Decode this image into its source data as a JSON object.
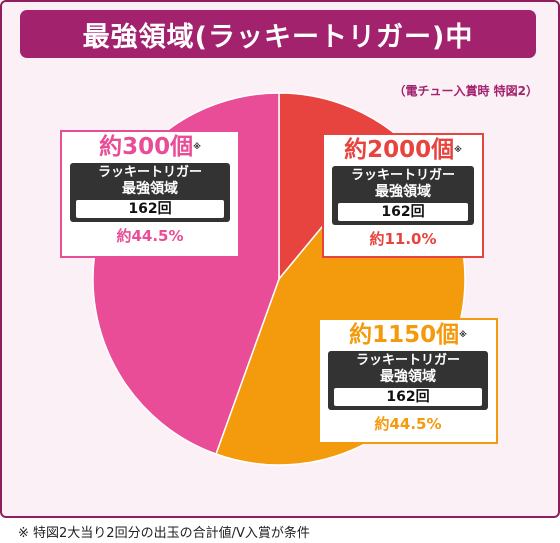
{
  "title": "最強領域(ラッキートリガー)中",
  "subtitle": "（電チュー入賞時 特図2）",
  "footnote": "※ 特図2大当り2回分の出玉の合計値/V入賞が条件",
  "colors": {
    "red": "#e8443f",
    "orange": "#f49a0d",
    "pink": "#e94d97",
    "frame": "#8e1f5c",
    "title_bg": "#a2226d"
  },
  "chart_data": {
    "type": "pie",
    "title": "最強領域(ラッキートリガー)中",
    "slices": [
      {
        "label": "約2000個",
        "value": 11.0,
        "percent_label": "約11.0%",
        "mode_line1": "ラッキートリガー",
        "mode_line2": "最強領域",
        "count": "162回",
        "color": "#e8443f"
      },
      {
        "label": "約1150個",
        "value": 44.5,
        "percent_label": "約44.5%",
        "mode_line1": "ラッキートリガー",
        "mode_line2": "最強領域",
        "count": "162回",
        "color": "#f49a0d"
      },
      {
        "label": "約300個",
        "value": 44.5,
        "percent_label": "約44.5%",
        "mode_line1": "ラッキートリガー",
        "mode_line2": "最強領域",
        "count": "162回",
        "color": "#e94d97"
      }
    ],
    "note_mark": "※"
  }
}
